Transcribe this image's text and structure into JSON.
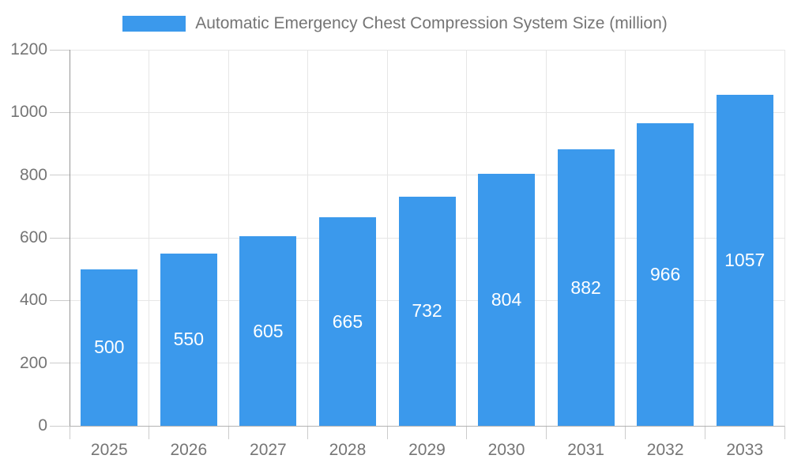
{
  "chart_data": {
    "type": "bar",
    "title": "Automatic Emergency Chest Compression System Size (million)",
    "legend": [
      "Automatic Emergency Chest Compression System Size (million)"
    ],
    "legend_position": "top-center",
    "categories": [
      "2025",
      "2026",
      "2027",
      "2028",
      "2029",
      "2030",
      "2031",
      "2032",
      "2033"
    ],
    "values": [
      500,
      550,
      605,
      665,
      732,
      804,
      882,
      966,
      1057
    ],
    "xlabel": "",
    "ylabel": "",
    "ylim": [
      0,
      1200
    ],
    "yticks": [
      0,
      200,
      400,
      600,
      800,
      1000,
      1200
    ],
    "grid": true,
    "value_labels": "inside-center",
    "colors": {
      "bar": "#3b99ec",
      "grid": "#e6e6e6",
      "tick": "#cccccc",
      "axis_y": "#969696",
      "axis_x": "#b3b3b3",
      "label_text": "#757575",
      "value_text": "#ffffff",
      "background": "#ffffff"
    }
  }
}
